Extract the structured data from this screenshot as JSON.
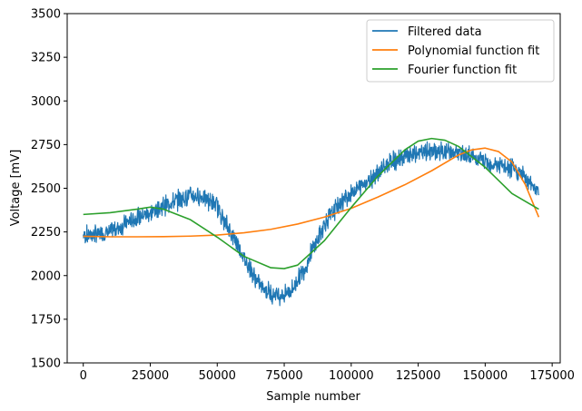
{
  "chart_data": {
    "type": "line",
    "title": "",
    "xlabel": "Sample number",
    "ylabel": "Voltage [mV]",
    "xlim": [
      -6000,
      178000
    ],
    "ylim": [
      1500,
      3500
    ],
    "xticks": [
      0,
      25000,
      50000,
      75000,
      100000,
      125000,
      150000,
      175000
    ],
    "xtick_labels": [
      "0",
      "25000",
      "50000",
      "75000",
      "100000",
      "125000",
      "150000",
      "175000"
    ],
    "yticks": [
      1500,
      1750,
      2000,
      2250,
      2500,
      2750,
      3000,
      3250,
      3500
    ],
    "ytick_labels": [
      "1500",
      "1750",
      "2000",
      "2250",
      "2500",
      "2750",
      "3000",
      "3250",
      "3500"
    ],
    "grid": false,
    "legend_position": "top-right",
    "series": [
      {
        "name": "Filtered data",
        "color": "#1f77b4",
        "noise": 45,
        "x": [
          0,
          5000,
          10000,
          15000,
          20000,
          25000,
          30000,
          35000,
          40000,
          45000,
          50000,
          52000,
          55000,
          58000,
          60000,
          63000,
          65000,
          68000,
          70000,
          73000,
          75000,
          78000,
          80000,
          83000,
          85000,
          88000,
          90000,
          95000,
          100000,
          105000,
          110000,
          115000,
          120000,
          125000,
          130000,
          135000,
          140000,
          145000,
          150000,
          155000,
          160000,
          163000,
          165000,
          168000,
          170000
        ],
        "y": [
          2230,
          2235,
          2250,
          2290,
          2330,
          2360,
          2400,
          2430,
          2460,
          2450,
          2400,
          2330,
          2250,
          2170,
          2100,
          2020,
          1960,
          1920,
          1900,
          1890,
          1890,
          1920,
          1980,
          2050,
          2130,
          2220,
          2300,
          2400,
          2470,
          2530,
          2590,
          2650,
          2680,
          2700,
          2710,
          2710,
          2700,
          2680,
          2650,
          2630,
          2610,
          2590,
          2560,
          2520,
          2470
        ]
      },
      {
        "name": "Polynomial function fit",
        "color": "#ff7f0e",
        "x": [
          0,
          10000,
          20000,
          30000,
          40000,
          50000,
          60000,
          70000,
          80000,
          90000,
          100000,
          110000,
          120000,
          130000,
          140000,
          145000,
          150000,
          155000,
          160000,
          165000,
          170000
        ],
        "y": [
          2225,
          2222,
          2222,
          2223,
          2226,
          2232,
          2245,
          2265,
          2295,
          2335,
          2385,
          2450,
          2520,
          2600,
          2690,
          2720,
          2730,
          2710,
          2650,
          2520,
          2335
        ]
      },
      {
        "name": "Fourier function fit",
        "color": "#2ca02c",
        "x": [
          0,
          10000,
          20000,
          25000,
          30000,
          40000,
          50000,
          60000,
          70000,
          75000,
          80000,
          90000,
          100000,
          110000,
          120000,
          125000,
          130000,
          135000,
          140000,
          150000,
          160000,
          170000
        ],
        "y": [
          2350,
          2360,
          2380,
          2392,
          2380,
          2320,
          2220,
          2110,
          2045,
          2040,
          2060,
          2200,
          2390,
          2570,
          2720,
          2770,
          2785,
          2775,
          2740,
          2620,
          2470,
          2380
        ]
      }
    ]
  }
}
